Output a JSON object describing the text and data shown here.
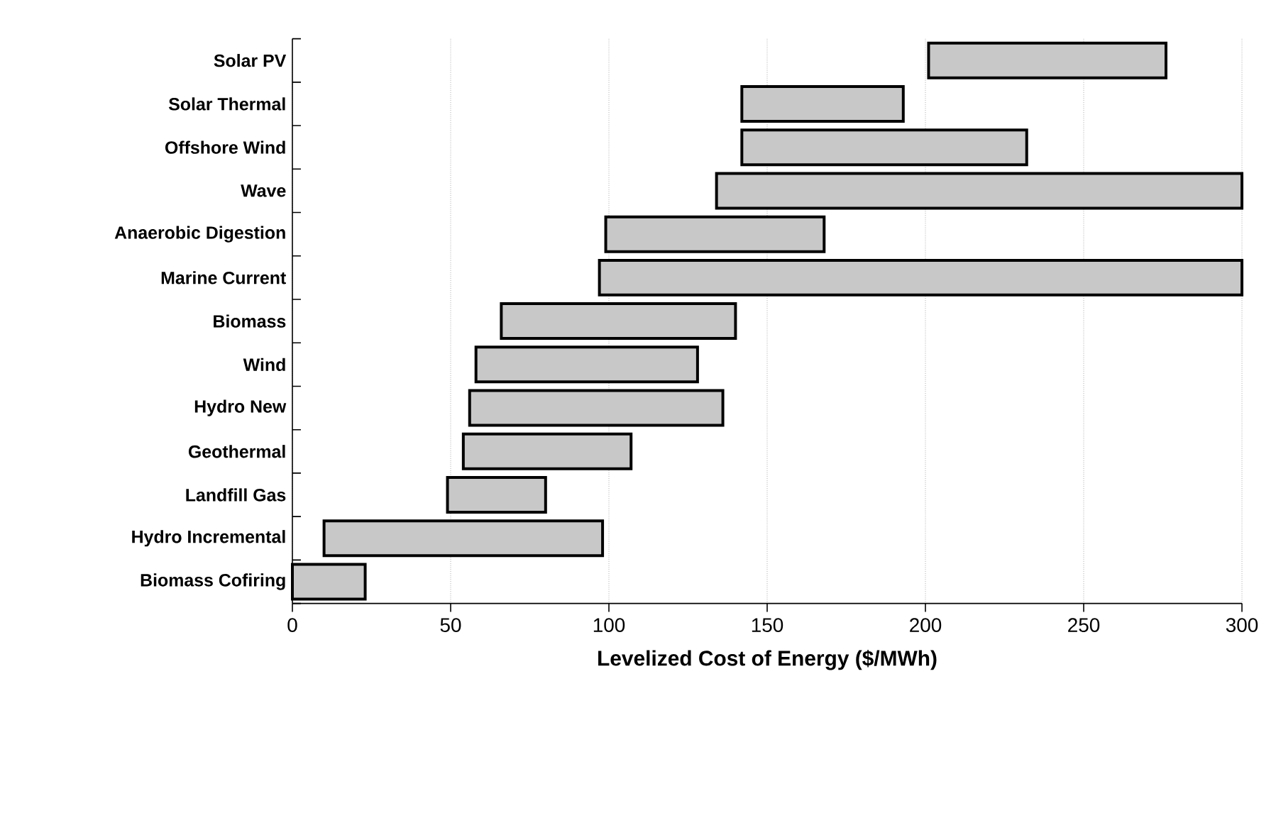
{
  "chart_data": {
    "type": "bar",
    "orientation": "horizontal",
    "xlabel": "Levelized Cost of Energy ($/MWh)",
    "categories": [
      "Solar PV",
      "Solar Thermal",
      "Offshore Wind",
      "Wave",
      "Anaerobic Digestion",
      "Marine Current",
      "Biomass",
      "Wind",
      "Hydro New",
      "Geothermal",
      "Landfill Gas",
      "Hydro Incremental",
      "Biomass Cofiring"
    ],
    "base": [
      201,
      142,
      142,
      134,
      99,
      97,
      66,
      58,
      56,
      54,
      49,
      10,
      0
    ],
    "values": [
      75,
      51,
      90,
      166,
      69,
      203,
      74,
      70,
      80,
      53,
      31,
      88,
      23
    ],
    "color": "#c8c8c8",
    "xlim": [
      0,
      300
    ],
    "xticks": [
      0,
      50,
      100,
      150,
      200,
      250,
      300
    ],
    "grid": "x"
  }
}
